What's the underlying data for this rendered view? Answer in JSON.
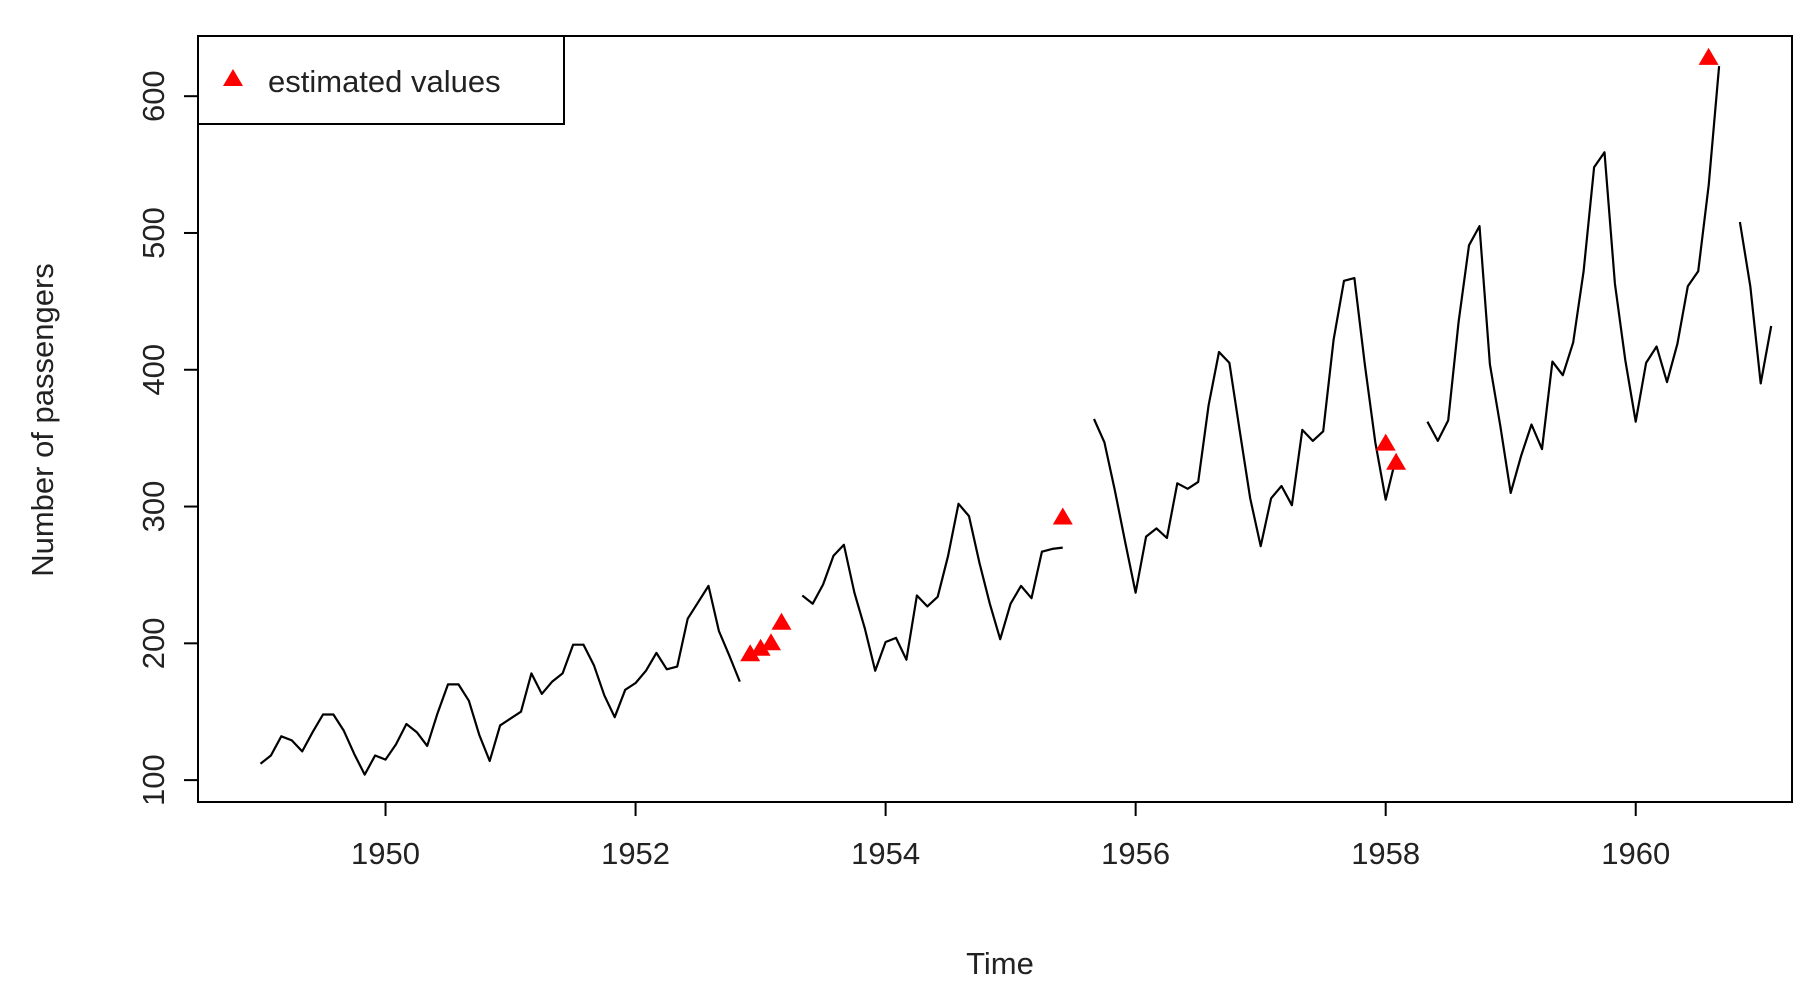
{
  "chart_data": {
    "type": "line",
    "title": "",
    "xlabel": "Time",
    "ylabel": "Number of passengers",
    "xlim": [
      1948.5,
      1961.25
    ],
    "ylim": [
      84,
      644
    ],
    "x_ticks": [
      1950,
      1952,
      1954,
      1956,
      1958,
      1960
    ],
    "x_tick_labels": [
      "1950",
      "1952",
      "1954",
      "1956",
      "1958",
      "1960"
    ],
    "y_ticks": [
      100,
      200,
      300,
      400,
      500,
      600
    ],
    "y_tick_labels": [
      "100",
      "200",
      "300",
      "400",
      "500",
      "600"
    ],
    "grid": false,
    "legend": {
      "position": "top-left",
      "entries": [
        "estimated values"
      ]
    },
    "colors": {
      "line": "#000000",
      "estimated": "#ff0000",
      "axis": "#000000"
    },
    "series": [
      {
        "type": "line",
        "start_year": 1949,
        "frequency": 12,
        "values": [
          112,
          118,
          132,
          129,
          121,
          135,
          148,
          148,
          136,
          119,
          104,
          118,
          115,
          126,
          141,
          135,
          125,
          149,
          170,
          170,
          158,
          133,
          114,
          140,
          145,
          150,
          178,
          163,
          172,
          178,
          199,
          199,
          184,
          162,
          146,
          166,
          171,
          180,
          193,
          181,
          183,
          218,
          230,
          242,
          209,
          191,
          172,
          null,
          null,
          null,
          null,
          null,
          235,
          229,
          243,
          264,
          272,
          237,
          211,
          180,
          201,
          204,
          188,
          235,
          227,
          234,
          264,
          302,
          293,
          259,
          229,
          203,
          229,
          242,
          233,
          267,
          269,
          270,
          null,
          null,
          364,
          347,
          312,
          274,
          237,
          278,
          284,
          277,
          317,
          313,
          318,
          374,
          413,
          405,
          355,
          306,
          271,
          306,
          315,
          301,
          356,
          348,
          355,
          422,
          465,
          467,
          404,
          347,
          305,
          336,
          null,
          null,
          362,
          348,
          363,
          435,
          491,
          505,
          404,
          359,
          310,
          337,
          360,
          342,
          406,
          396,
          420,
          472,
          548,
          559,
          463,
          407,
          362,
          405,
          417,
          391,
          419,
          461,
          472,
          535,
          622,
          null,
          508,
          461,
          390,
          432
        ]
      },
      {
        "name": "estimated values",
        "type": "scatter",
        "marker": "triangle",
        "points": [
          {
            "x": 1952.917,
            "y": 192
          },
          {
            "x": 1953.0,
            "y": 196
          },
          {
            "x": 1953.083,
            "y": 200
          },
          {
            "x": 1953.167,
            "y": 215
          },
          {
            "x": 1955.417,
            "y": 292
          },
          {
            "x": 1958.0,
            "y": 346
          },
          {
            "x": 1958.083,
            "y": 332
          },
          {
            "x": 1960.583,
            "y": 628
          }
        ]
      }
    ]
  }
}
